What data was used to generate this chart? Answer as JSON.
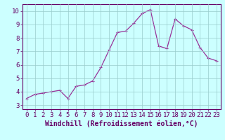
{
  "x": [
    0,
    1,
    2,
    3,
    4,
    5,
    6,
    7,
    8,
    9,
    10,
    11,
    12,
    13,
    14,
    15,
    16,
    17,
    18,
    19,
    20,
    21,
    22,
    23
  ],
  "y": [
    3.5,
    3.8,
    3.9,
    4.0,
    4.1,
    3.5,
    4.4,
    4.5,
    4.8,
    5.8,
    7.1,
    8.4,
    8.5,
    9.1,
    9.8,
    10.1,
    7.4,
    7.2,
    9.4,
    8.9,
    8.6,
    7.3,
    6.5,
    6.3
  ],
  "line_color": "#993399",
  "marker": "+",
  "marker_color": "#993399",
  "bg_color": "#ccffff",
  "grid_color": "#99cccc",
  "xlabel": "Windchill (Refroidissement éolien,°C)",
  "xlim": [
    -0.5,
    23.5
  ],
  "ylim": [
    2.7,
    10.5
  ],
  "yticks": [
    3,
    4,
    5,
    6,
    7,
    8,
    9,
    10
  ],
  "xticks": [
    0,
    1,
    2,
    3,
    4,
    5,
    6,
    7,
    8,
    9,
    10,
    11,
    12,
    13,
    14,
    15,
    16,
    17,
    18,
    19,
    20,
    21,
    22,
    23
  ],
  "xlabel_fontsize": 7,
  "tick_fontsize": 6.5,
  "xlabel_color": "#660066",
  "tick_color": "#660066",
  "spine_color": "#660066",
  "linewidth": 0.9,
  "markersize": 3.5
}
